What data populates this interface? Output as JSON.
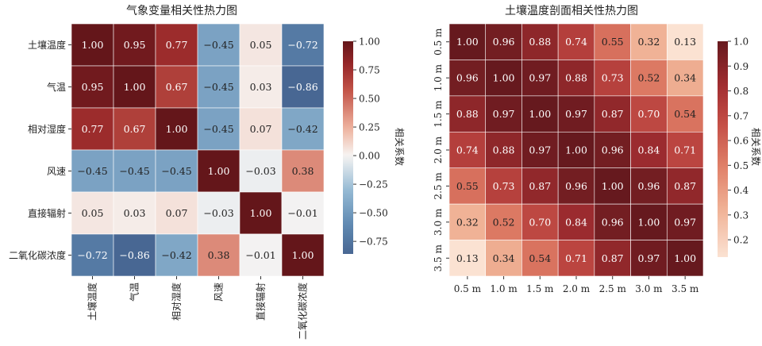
{
  "chart_data": [
    {
      "type": "heatmap",
      "title": "气象变量相关性热力图",
      "row_labels": [
        "土壤温度",
        "气温",
        "相对湿度",
        "风速",
        "直接辐射",
        "二氧化碳浓度"
      ],
      "col_labels": [
        "土壤温度",
        "气温",
        "相对湿度",
        "风速",
        "直接辐射",
        "二氧化碳浓度"
      ],
      "values": [
        [
          1.0,
          0.95,
          0.77,
          -0.45,
          0.05,
          -0.72
        ],
        [
          0.95,
          1.0,
          0.67,
          -0.45,
          0.03,
          -0.86
        ],
        [
          0.77,
          0.67,
          1.0,
          -0.45,
          0.07,
          -0.42
        ],
        [
          -0.45,
          -0.45,
          -0.45,
          1.0,
          -0.03,
          0.38
        ],
        [
          0.05,
          0.03,
          0.07,
          -0.03,
          1.0,
          -0.01
        ],
        [
          -0.72,
          -0.86,
          -0.42,
          0.38,
          -0.01,
          1.0
        ]
      ],
      "value_labels": [
        [
          "1.00",
          "0.95",
          "0.77",
          "−0.45",
          "0.05",
          "−0.72"
        ],
        [
          "0.95",
          "1.00",
          "0.67",
          "−0.45",
          "0.03",
          "−0.86"
        ],
        [
          "0.77",
          "0.67",
          "1.00",
          "−0.45",
          "0.07",
          "−0.42"
        ],
        [
          "−0.45",
          "−0.45",
          "−0.45",
          "1.00",
          "−0.03",
          "0.38"
        ],
        [
          "0.05",
          "0.03",
          "0.07",
          "−0.03",
          "1.00",
          "−0.01"
        ],
        [
          "−0.72",
          "−0.86",
          "−0.42",
          "0.38",
          "−0.01",
          "1.00"
        ]
      ],
      "colormap": "RdBu_r",
      "vmin": -0.86,
      "vmax": 1.0,
      "colorbar_label": "相关系数",
      "colorbar_ticks": [
        "1.00",
        "0.75",
        "0.50",
        "0.25",
        "0.00",
        "−0.25",
        "−0.50",
        "−0.75"
      ],
      "colorbar_tick_values": [
        1.0,
        0.75,
        0.5,
        0.25,
        0.0,
        -0.25,
        -0.5,
        -0.75
      ]
    },
    {
      "type": "heatmap",
      "title": "土壤温度剖面相关性热力图",
      "row_labels": [
        "0.5 m",
        "1.0 m",
        "1.5 m",
        "2.0 m",
        "2.5 m",
        "3.0 m",
        "3.5 m"
      ],
      "col_labels": [
        "0.5 m",
        "1.0 m",
        "1.5 m",
        "2.0 m",
        "2.5 m",
        "3.0 m",
        "3.5 m"
      ],
      "values": [
        [
          1.0,
          0.96,
          0.88,
          0.74,
          0.55,
          0.32,
          0.13
        ],
        [
          0.96,
          1.0,
          0.97,
          0.88,
          0.73,
          0.52,
          0.34
        ],
        [
          0.88,
          0.97,
          1.0,
          0.97,
          0.87,
          0.7,
          0.54
        ],
        [
          0.74,
          0.88,
          0.97,
          1.0,
          0.96,
          0.84,
          0.71
        ],
        [
          0.55,
          0.73,
          0.87,
          0.96,
          1.0,
          0.96,
          0.87
        ],
        [
          0.32,
          0.52,
          0.7,
          0.84,
          0.96,
          1.0,
          0.97
        ],
        [
          0.13,
          0.34,
          0.54,
          0.71,
          0.87,
          0.97,
          1.0
        ]
      ],
      "value_labels": [
        [
          "1.00",
          "0.96",
          "0.88",
          "0.74",
          "0.55",
          "0.32",
          "0.13"
        ],
        [
          "0.96",
          "1.00",
          "0.97",
          "0.88",
          "0.73",
          "0.52",
          "0.34"
        ],
        [
          "0.88",
          "0.97",
          "1.00",
          "0.97",
          "0.87",
          "0.70",
          "0.54"
        ],
        [
          "0.74",
          "0.88",
          "0.97",
          "1.00",
          "0.96",
          "0.84",
          "0.71"
        ],
        [
          "0.55",
          "0.73",
          "0.87",
          "0.96",
          "1.00",
          "0.96",
          "0.87"
        ],
        [
          "0.32",
          "0.52",
          "0.70",
          "0.84",
          "0.96",
          "1.00",
          "0.97"
        ],
        [
          "0.13",
          "0.34",
          "0.54",
          "0.71",
          "0.87",
          "0.97",
          "1.00"
        ]
      ],
      "colormap": "Reds",
      "vmin": 0.13,
      "vmax": 1.0,
      "colorbar_label": "相关系数",
      "colorbar_ticks": [
        "1.0",
        "0.9",
        "0.8",
        "0.7",
        "0.6",
        "0.5",
        "0.4",
        "0.3",
        "0.2"
      ],
      "colorbar_tick_values": [
        1.0,
        0.9,
        0.8,
        0.7,
        0.6,
        0.5,
        0.4,
        0.3,
        0.2
      ]
    }
  ]
}
